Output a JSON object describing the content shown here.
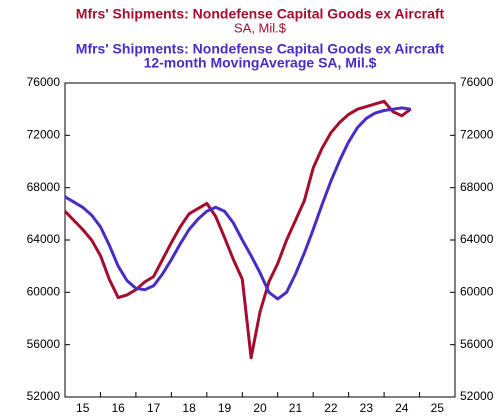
{
  "chart_data": {
    "type": "line",
    "x": [
      2015.0,
      2015.25,
      2015.5,
      2015.75,
      2016.0,
      2016.25,
      2016.5,
      2016.75,
      2017.0,
      2017.25,
      2017.5,
      2017.75,
      2018.0,
      2018.25,
      2018.5,
      2018.75,
      2019.0,
      2019.25,
      2019.5,
      2019.75,
      2020.0,
      2020.25,
      2020.5,
      2020.75,
      2021.0,
      2021.25,
      2021.5,
      2021.75,
      2022.0,
      2022.25,
      2022.5,
      2022.75,
      2023.0,
      2023.25,
      2023.5,
      2023.75,
      2024.0,
      2024.25,
      2024.5,
      2024.75
    ],
    "series": [
      {
        "name": "Mfrs' Shipments: Nondefense Capital Goods ex Aircraft",
        "note": "SA, Mil.$",
        "color": "#a50d2e",
        "values": [
          66200,
          65500,
          64800,
          64000,
          62800,
          61000,
          59600,
          59800,
          60200,
          60800,
          61200,
          62500,
          63800,
          65000,
          66000,
          66400,
          66800,
          65800,
          64200,
          62500,
          61000,
          55000,
          58500,
          60800,
          62200,
          64000,
          65500,
          67000,
          69500,
          71000,
          72200,
          73000,
          73600,
          74000,
          74200,
          74400,
          74600,
          73800,
          73500,
          74000
        ]
      },
      {
        "name": "Mfrs' Shipments: Nondefense Capital Goods ex Aircraft",
        "note": "12-month MovingAverage      SA, Mil.$",
        "color": "#4a2bc4",
        "values": [
          67300,
          66900,
          66500,
          65900,
          65000,
          63600,
          62000,
          60900,
          60300,
          60200,
          60500,
          61400,
          62500,
          63700,
          64800,
          65600,
          66200,
          66500,
          66200,
          65300,
          64000,
          62800,
          61500,
          60000,
          59500,
          60000,
          61400,
          63000,
          64800,
          66700,
          68500,
          70100,
          71500,
          72600,
          73300,
          73700,
          73900,
          74000,
          74100,
          74000
        ]
      }
    ],
    "xlim": [
      2015,
      2026
    ],
    "xticks": [
      {
        "value": 2015,
        "label": "15"
      },
      {
        "value": 2016,
        "label": "16"
      },
      {
        "value": 2017,
        "label": "17"
      },
      {
        "value": 2018,
        "label": "18"
      },
      {
        "value": 2019,
        "label": "19"
      },
      {
        "value": 2020,
        "label": "20"
      },
      {
        "value": 2021,
        "label": "21"
      },
      {
        "value": 2022,
        "label": "22"
      },
      {
        "value": 2023,
        "label": "23"
      },
      {
        "value": 2024,
        "label": "24"
      },
      {
        "value": 2025,
        "label": "25"
      }
    ],
    "ylim": [
      52000,
      76000
    ],
    "yticks": [
      52000,
      56000,
      60000,
      64000,
      68000,
      72000,
      76000
    ],
    "y2lim": [
      52000,
      76000
    ],
    "y2ticks": [
      52000,
      56000,
      60000,
      64000,
      68000,
      72000,
      76000
    ]
  }
}
